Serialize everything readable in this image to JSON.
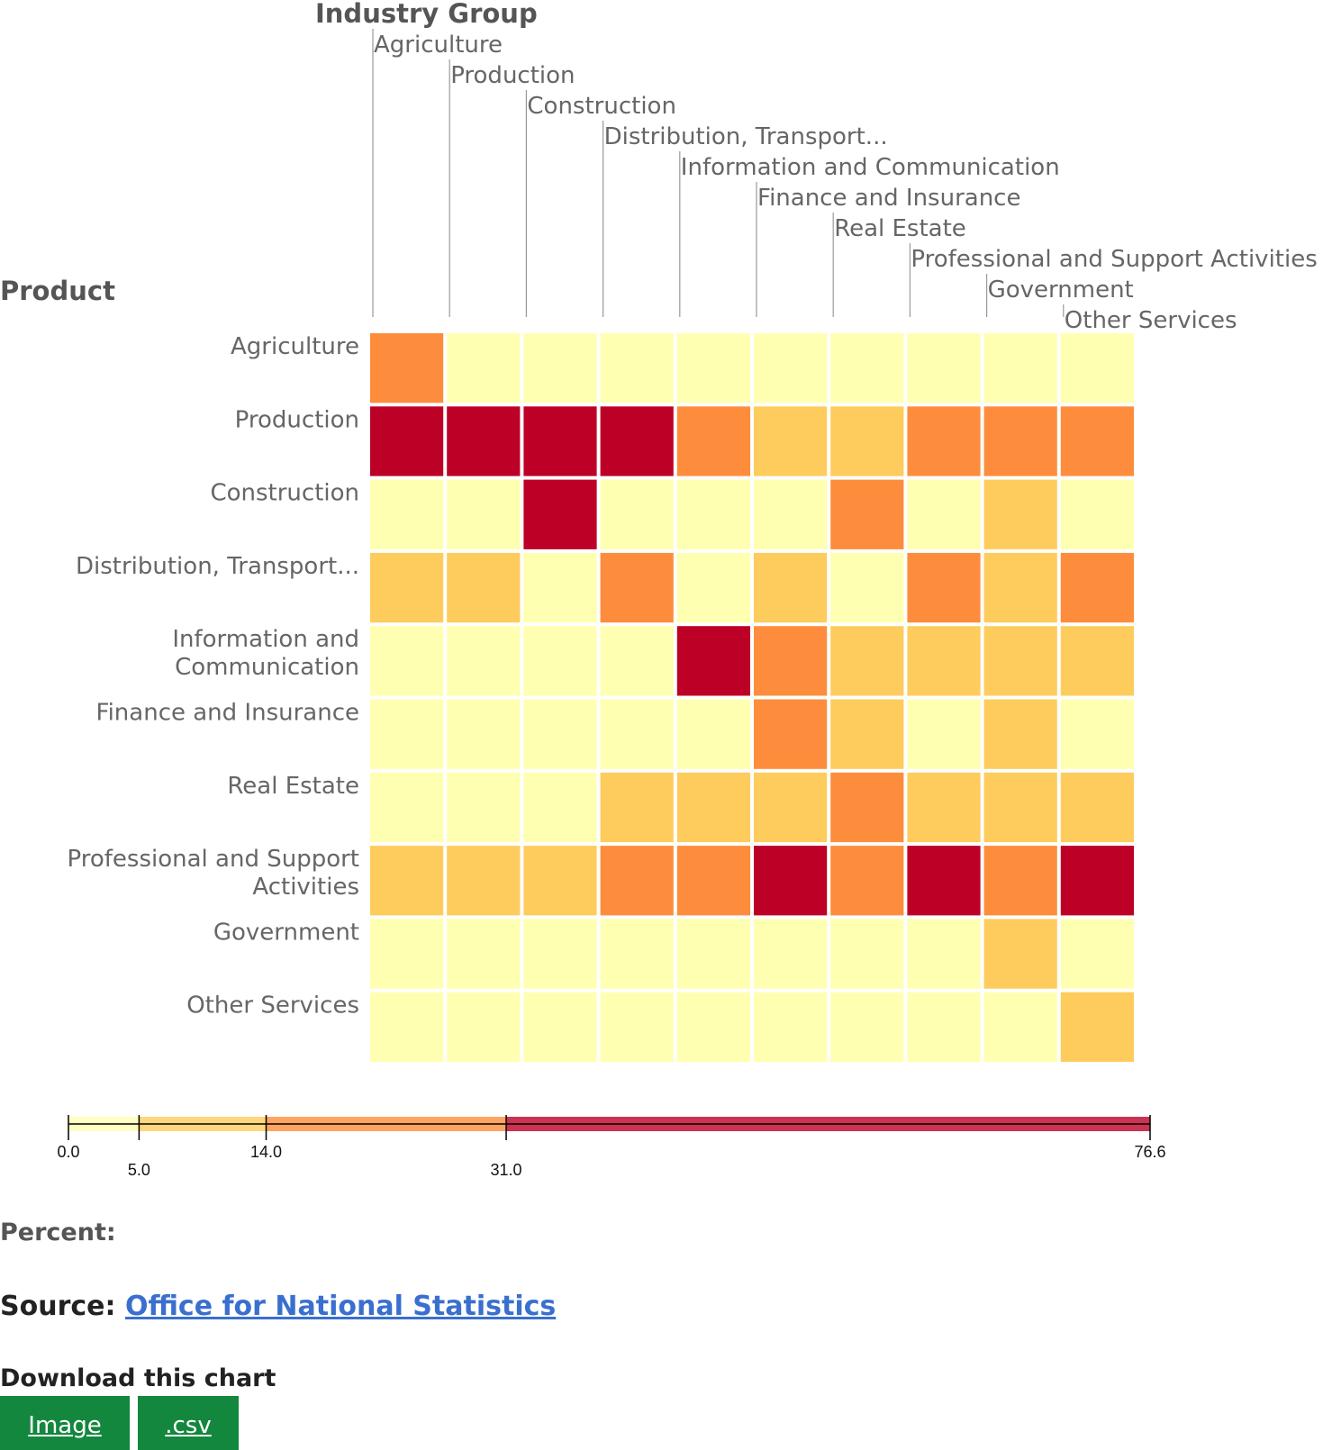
{
  "chart_data": {
    "type": "heatmap",
    "column_axis_title": "Industry Group",
    "row_axis_title": "Product",
    "columns": [
      "Agriculture",
      "Production",
      "Construction",
      "Distribution, Transport...",
      "Information and Communication",
      "Finance and Insurance",
      "Real Estate",
      "Professional and Support Activities",
      "Government",
      "Other Services"
    ],
    "rows": [
      "Agriculture",
      "Production",
      "Construction",
      "Distribution, Transport...",
      "Information and Communication",
      "Finance and Insurance",
      "Real Estate",
      "Professional and Support Activities",
      "Government",
      "Other Services"
    ],
    "row_label_lines": [
      [
        "Agriculture"
      ],
      [
        "Production"
      ],
      [
        "Construction"
      ],
      [
        "Distribution, Transport..."
      ],
      [
        "Information and",
        "Communication"
      ],
      [
        "Finance and Insurance"
      ],
      [
        "Real Estate"
      ],
      [
        "Professional and Support",
        "Activities"
      ],
      [
        "Government"
      ],
      [
        "Other Services"
      ]
    ],
    "values": [
      [
        25,
        1,
        1,
        1,
        1,
        1,
        1,
        1,
        1,
        1
      ],
      [
        50,
        45,
        40,
        35,
        20,
        10,
        10,
        20,
        20,
        20
      ],
      [
        2,
        2,
        40,
        2,
        2,
        2,
        20,
        2,
        10,
        2
      ],
      [
        10,
        10,
        2,
        20,
        2,
        10,
        2,
        20,
        10,
        20
      ],
      [
        2,
        2,
        2,
        2,
        45,
        20,
        10,
        10,
        10,
        10
      ],
      [
        2,
        2,
        2,
        2,
        2,
        20,
        10,
        2,
        10,
        2
      ],
      [
        2,
        2,
        2,
        10,
        10,
        10,
        20,
        10,
        10,
        10
      ],
      [
        10,
        10,
        10,
        20,
        20,
        40,
        20,
        40,
        20,
        40
      ],
      [
        2,
        2,
        2,
        2,
        2,
        2,
        2,
        2,
        10,
        2
      ],
      [
        2,
        2,
        2,
        2,
        2,
        2,
        2,
        2,
        2,
        10
      ]
    ],
    "color_scale": {
      "breaks": [
        0.0,
        5.0,
        14.0,
        31.0,
        76.6
      ],
      "break_labels": [
        "0.0",
        "5.0",
        "14.0",
        "31.0",
        "76.6"
      ],
      "colors": [
        "#ffffb2",
        "#fecc5c",
        "#fd8d3c",
        "#bd0026"
      ]
    },
    "legend_title": "Percent:"
  },
  "source": {
    "label": "Source:",
    "link_text": "Office for National Statistics"
  },
  "download": {
    "title": "Download this chart",
    "image_label": "Image",
    "csv_label": ".csv",
    "button_color": "#13873d"
  }
}
